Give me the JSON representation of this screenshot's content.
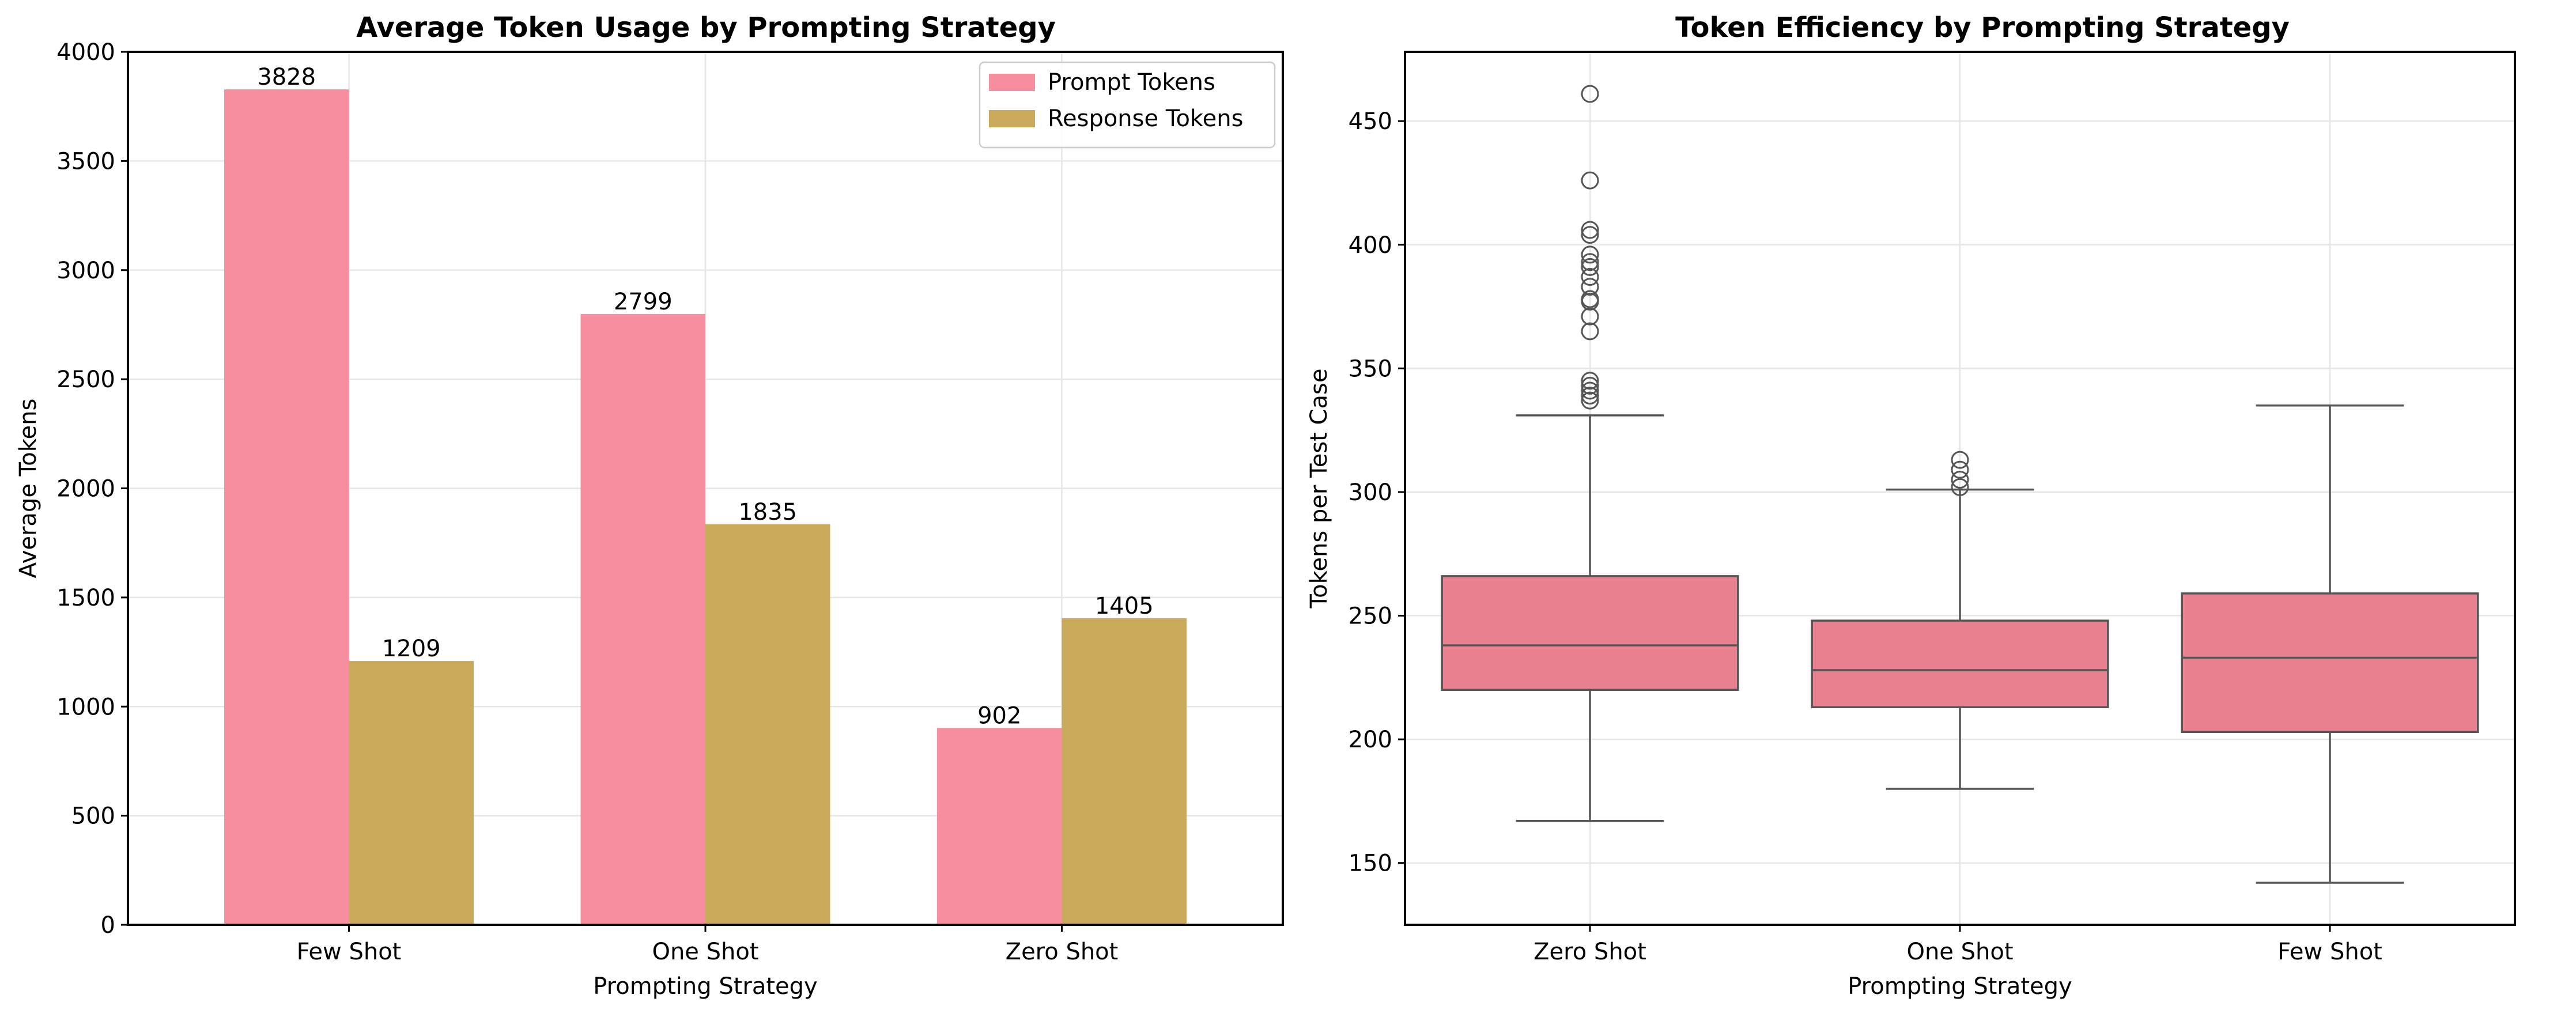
{
  "chart_data": [
    {
      "type": "bar",
      "title": "Average Token Usage by Prompting Strategy",
      "xlabel": "Prompting Strategy",
      "ylabel": "Average Tokens",
      "categories": [
        "Few Shot",
        "One Shot",
        "Zero Shot"
      ],
      "series": [
        {
          "name": "Prompt Tokens",
          "values": [
            3828,
            2799,
            902
          ],
          "color": "#f78ea0"
        },
        {
          "name": "Response Tokens",
          "values": [
            1209,
            1835,
            1405
          ],
          "color": "#c8aa5a"
        }
      ],
      "ylim": [
        0,
        4000
      ],
      "yticks": [
        0,
        500,
        1000,
        1500,
        2000,
        2500,
        3000,
        3500,
        4000
      ],
      "grid": true,
      "legend": "top-right",
      "data_labels": true
    },
    {
      "type": "box",
      "title": "Token Efficiency by Prompting Strategy",
      "xlabel": "Prompting Strategy",
      "ylabel": "Tokens per Test Case",
      "categories": [
        "Zero Shot",
        "One Shot",
        "Few Shot"
      ],
      "color": "#e88090",
      "ylim": [
        125,
        478
      ],
      "yticks": [
        150,
        200,
        250,
        300,
        350,
        400,
        450
      ],
      "grid": true,
      "boxes": [
        {
          "whisker_low": 167,
          "q1": 220,
          "median": 238,
          "q3": 266,
          "whisker_high": 331,
          "outliers": [
            337,
            339,
            341,
            343,
            345,
            365,
            371,
            377,
            378,
            383,
            387,
            391,
            393,
            396,
            404,
            406,
            426,
            461
          ]
        },
        {
          "whisker_low": 180,
          "q1": 213,
          "median": 228,
          "q3": 248,
          "whisker_high": 301,
          "outliers": [
            302,
            305,
            309,
            313
          ]
        },
        {
          "whisker_low": 142,
          "q1": 203,
          "median": 233,
          "q3": 259,
          "whisker_high": 335,
          "outliers": []
        }
      ]
    }
  ]
}
